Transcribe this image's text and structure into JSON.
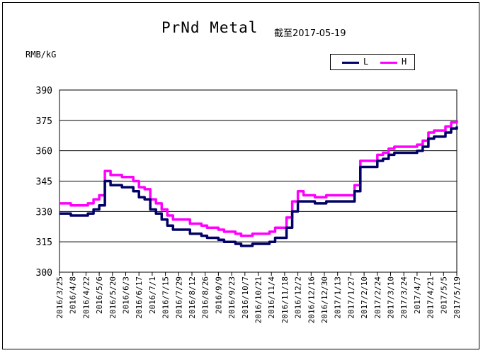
{
  "chart_data": {
    "type": "line",
    "title": "PrNd Metal",
    "subtitle": "截至2017-05-19",
    "xlabel": "",
    "ylabel": "RMB/kG",
    "ylim": [
      300,
      390
    ],
    "yticks": [
      300,
      315,
      330,
      345,
      360,
      375,
      390
    ],
    "grid": true,
    "legend_position": "top-right",
    "x_tick_labels": [
      "2016/3/25",
      "2016/4/8",
      "2016/4/22",
      "2016/5/6",
      "2016/5/20",
      "2016/6/3",
      "2016/6/17",
      "2016/7/1",
      "2016/7/15",
      "2016/7/29",
      "2016/8/12",
      "2016/8/26",
      "2016/9/9",
      "2016/9/23",
      "2016/10/7",
      "2016/10/21",
      "2016/11/4",
      "2016/11/18",
      "2016/12/2",
      "2016/12/16",
      "2016/12/30",
      "2017/1/13",
      "2017/1/27",
      "2017/2/10",
      "2017/2/24",
      "2017/3/10",
      "2017/3/24",
      "2017/4/7",
      "2017/4/21",
      "2017/5/5",
      "2017/5/19"
    ],
    "series": [
      {
        "name": "L",
        "color": "#000066",
        "values": [
          329,
          329,
          328,
          328,
          328,
          329,
          331,
          333,
          345,
          343,
          343,
          342,
          342,
          340,
          337,
          336,
          331,
          329,
          326,
          323,
          321,
          321,
          321,
          319,
          319,
          318,
          317,
          317,
          316,
          315,
          315,
          314,
          313,
          313,
          314,
          314,
          314,
          315,
          317,
          317,
          322,
          330,
          335,
          335,
          335,
          334,
          334,
          335,
          335,
          335,
          335,
          335,
          340,
          352,
          352,
          352,
          355,
          356,
          358,
          359,
          359,
          359,
          359,
          360,
          362,
          366,
          367,
          367,
          369,
          371,
          372
        ]
      },
      {
        "name": "H",
        "color": "#ff00ff",
        "values": [
          334,
          334,
          333,
          333,
          333,
          334,
          336,
          338,
          350,
          348,
          348,
          347,
          347,
          345,
          342,
          341,
          336,
          334,
          331,
          328,
          326,
          326,
          326,
          324,
          324,
          323,
          322,
          322,
          321,
          320,
          320,
          319,
          318,
          318,
          319,
          319,
          319,
          320,
          322,
          322,
          327,
          335,
          340,
          338,
          338,
          337,
          337,
          338,
          338,
          338,
          338,
          338,
          343,
          355,
          355,
          355,
          358,
          359,
          361,
          362,
          362,
          362,
          362,
          363,
          365,
          369,
          370,
          370,
          372,
          374,
          375
        ]
      }
    ]
  }
}
